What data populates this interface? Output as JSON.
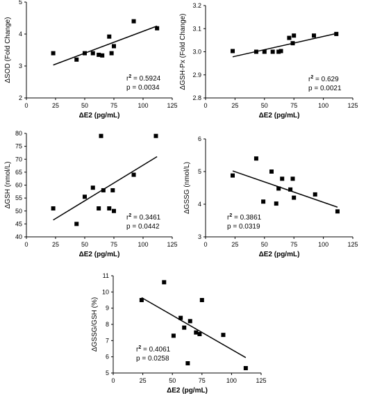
{
  "chart_data": [
    {
      "type": "scatter",
      "xlabel": "ΔE2 (pg/mL)",
      "ylabel": "ΔSOD (Fold Change)",
      "xlim": [
        0,
        125
      ],
      "ylim": [
        2,
        5
      ],
      "xticks": [
        0,
        25,
        50,
        75,
        100,
        125
      ],
      "yticks": [
        2,
        3,
        4,
        5
      ],
      "points": [
        [
          23,
          3.4
        ],
        [
          43,
          3.2
        ],
        [
          50,
          3.4
        ],
        [
          57,
          3.4
        ],
        [
          62,
          3.35
        ],
        [
          65,
          3.33
        ],
        [
          71,
          3.92
        ],
        [
          73,
          3.4
        ],
        [
          75,
          3.62
        ],
        [
          92,
          4.4
        ],
        [
          112,
          4.18
        ]
      ],
      "fit": {
        "x": [
          23,
          112
        ],
        "y": [
          3.03,
          4.25
        ]
      },
      "stats": {
        "r2": "r² = 0.5924",
        "p": "p = 0.0034"
      }
    },
    {
      "type": "scatter",
      "xlabel": "ΔE2 (pg/mL)",
      "ylabel": "ΔGSH-Px (Fold Change)",
      "xlim": [
        0,
        125
      ],
      "ylim": [
        2.8,
        3.2
      ],
      "xticks": [
        0,
        25,
        50,
        75,
        100,
        125
      ],
      "yticks": [
        2.8,
        2.9,
        3.0,
        3.1,
        3.2
      ],
      "points": [
        [
          23,
          3.003
        ],
        [
          43,
          3.0
        ],
        [
          50,
          3.0
        ],
        [
          57,
          3.0
        ],
        [
          62,
          3.0
        ],
        [
          64,
          3.003
        ],
        [
          71,
          3.06
        ],
        [
          74,
          3.037
        ],
        [
          75,
          3.07
        ],
        [
          92,
          3.07
        ],
        [
          111,
          3.077
        ]
      ],
      "fit": {
        "x": [
          23,
          112
        ],
        "y": [
          2.978,
          3.08
        ]
      },
      "stats": {
        "r2": "r² = 0.629",
        "p": "p = 0.0021"
      }
    },
    {
      "type": "scatter",
      "xlabel": "ΔE2 (pg/mL)",
      "ylabel": "ΔGSH (nmol/L)",
      "xlim": [
        0,
        125
      ],
      "ylim": [
        40,
        80
      ],
      "xticks": [
        0,
        25,
        50,
        75,
        100,
        125
      ],
      "yticks": [
        40,
        45,
        50,
        55,
        60,
        65,
        70,
        75,
        80
      ],
      "points": [
        [
          23,
          51
        ],
        [
          43,
          45
        ],
        [
          50,
          55.5
        ],
        [
          57,
          59
        ],
        [
          62,
          51
        ],
        [
          64,
          79
        ],
        [
          66,
          58
        ],
        [
          71,
          51
        ],
        [
          74,
          58
        ],
        [
          75,
          50
        ],
        [
          92,
          64
        ],
        [
          111,
          79
        ]
      ],
      "fit": {
        "x": [
          23,
          112
        ],
        "y": [
          46.5,
          71
        ]
      },
      "stats": {
        "r2": "r² = 0.3461",
        "p": "p = 0.0442"
      }
    },
    {
      "type": "scatter",
      "xlabel": "ΔE2 (pg/mL)",
      "ylabel": "ΔGSSG (nmol/L)",
      "xlim": [
        0,
        125
      ],
      "ylim": [
        3,
        6
      ],
      "xticks": [
        0,
        25,
        50,
        75,
        100,
        125
      ],
      "yticks": [
        3,
        4,
        5,
        6
      ],
      "points": [
        [
          23,
          4.88
        ],
        [
          43,
          5.4
        ],
        [
          49,
          4.08
        ],
        [
          56,
          5.0
        ],
        [
          60,
          4.02
        ],
        [
          62,
          4.48
        ],
        [
          65,
          4.78
        ],
        [
          72,
          4.45
        ],
        [
          74,
          4.78
        ],
        [
          75,
          4.2
        ],
        [
          93,
          4.3
        ],
        [
          112,
          3.78
        ]
      ],
      "fit": {
        "x": [
          23,
          112
        ],
        "y": [
          5.02,
          3.91
        ]
      },
      "stats": {
        "r2": "r² = 0.3861",
        "p": "p = 0.0319"
      }
    },
    {
      "type": "scatter",
      "xlabel": "ΔE2 (pg/mL)",
      "ylabel": "ΔGSSG/GSH (%)",
      "xlim": [
        0,
        125
      ],
      "ylim": [
        5,
        11
      ],
      "xticks": [
        0,
        25,
        50,
        75,
        100,
        125
      ],
      "yticks": [
        5,
        6,
        7,
        8,
        9,
        10,
        11
      ],
      "points": [
        [
          24,
          9.5
        ],
        [
          43,
          10.6
        ],
        [
          51,
          7.3
        ],
        [
          57,
          8.4
        ],
        [
          60,
          7.8
        ],
        [
          63,
          5.6
        ],
        [
          65,
          8.2
        ],
        [
          70,
          7.5
        ],
        [
          73,
          7.4
        ],
        [
          75,
          9.5
        ],
        [
          93,
          7.35
        ],
        [
          112,
          5.3
        ]
      ],
      "fit": {
        "x": [
          24,
          112
        ],
        "y": [
          9.65,
          5.95
        ]
      },
      "stats": {
        "r2": "r² = 0.4061",
        "p": "p = 0.0258"
      }
    }
  ]
}
